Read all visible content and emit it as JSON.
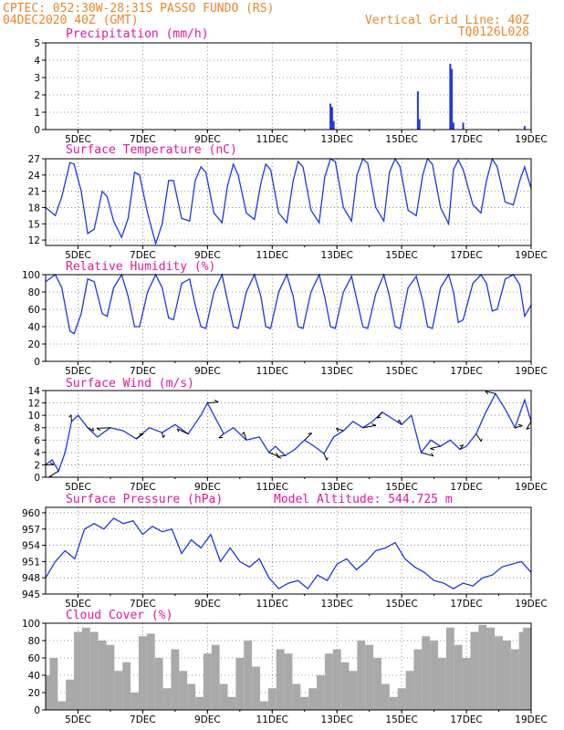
{
  "header": {
    "left_line1": "CPTEC:  052:30W-28:31S  PASSO FUNDO (RS)",
    "left_line2": "04DEC2020 40Z (GMT)",
    "right_line1": "Vertical Grid Line: 40Z",
    "right_line2": "TQ0126L028"
  },
  "colors": {
    "header": "#e8862e",
    "panel_title": "#e0199a",
    "line": "#1f37e0",
    "cloud": "#a9a9a9",
    "arrow": "#000000"
  },
  "x_axis": {
    "start_day": 4,
    "end_day": 19,
    "tick_days": [
      5,
      7,
      9,
      11,
      13,
      15,
      17,
      19
    ],
    "tick_labels": [
      "5DEC",
      "7DEC",
      "9DEC",
      "11DEC",
      "13DEC",
      "15DEC",
      "17DEC",
      "19DEC"
    ]
  },
  "chart_data": [
    {
      "id": "precip",
      "type": "bar",
      "title": "Precipitation (mm/h)",
      "ylim": [
        0,
        5
      ],
      "yticks": [
        0,
        1,
        2,
        3,
        4,
        5
      ],
      "x": [
        12.8,
        12.85,
        12.9,
        15.5,
        15.55,
        16.5,
        16.55,
        16.6,
        16.9,
        18.8
      ],
      "values": [
        1.5,
        1.3,
        0.5,
        2.2,
        0.6,
        3.8,
        3.5,
        0.4,
        0.4,
        0.2
      ]
    },
    {
      "id": "temp",
      "type": "line",
      "title": "Surface Temperature (nC)",
      "ylim": [
        11,
        27
      ],
      "yticks": [
        12,
        15,
        18,
        21,
        24,
        27
      ],
      "x": [
        4.0,
        4.3,
        4.5,
        4.75,
        4.88,
        5.1,
        5.3,
        5.5,
        5.75,
        5.9,
        6.1,
        6.35,
        6.55,
        6.75,
        6.9,
        7.15,
        7.4,
        7.6,
        7.8,
        7.95,
        8.2,
        8.45,
        8.62,
        8.8,
        8.95,
        9.2,
        9.45,
        9.62,
        9.8,
        9.95,
        10.2,
        10.45,
        10.65,
        10.8,
        10.95,
        11.2,
        11.45,
        11.65,
        11.8,
        11.95,
        12.2,
        12.45,
        12.62,
        12.8,
        12.95,
        13.2,
        13.45,
        13.62,
        13.8,
        13.95,
        14.2,
        14.45,
        14.62,
        14.8,
        14.95,
        15.2,
        15.45,
        15.65,
        15.8,
        15.95,
        16.2,
        16.45,
        16.6,
        16.75,
        16.9,
        17.2,
        17.45,
        17.62,
        17.8,
        17.95,
        18.2,
        18.45,
        18.65,
        18.8,
        19.0
      ],
      "values": [
        18,
        16.5,
        20,
        26.3,
        26,
        21,
        13.2,
        14,
        21,
        20,
        15.5,
        12.5,
        16,
        24.5,
        24,
        17,
        11.3,
        15,
        23,
        23,
        16,
        15.5,
        23,
        25.5,
        24.5,
        17,
        15.2,
        22,
        26,
        24,
        17,
        15.8,
        22.5,
        26,
        25,
        17,
        15.2,
        23,
        26.5,
        25.5,
        17.5,
        15.2,
        23.5,
        27,
        26.5,
        18,
        15.5,
        24,
        27,
        26.2,
        18,
        15.5,
        24.5,
        27,
        25.5,
        17.5,
        16.5,
        24,
        27,
        26,
        18,
        15,
        25,
        26.8,
        25,
        18.5,
        17,
        23,
        27,
        25.5,
        19,
        18.5,
        23,
        25.5,
        21.5
      ]
    },
    {
      "id": "rh",
      "type": "line",
      "title": "Relative Humidity (%)",
      "ylim": [
        0,
        100
      ],
      "yticks": [
        0,
        20,
        40,
        60,
        80,
        100
      ],
      "x": [
        4.0,
        4.3,
        4.5,
        4.75,
        4.88,
        5.1,
        5.3,
        5.5,
        5.75,
        5.9,
        6.1,
        6.35,
        6.55,
        6.75,
        6.9,
        7.15,
        7.4,
        7.6,
        7.8,
        7.95,
        8.2,
        8.45,
        8.62,
        8.8,
        8.95,
        9.2,
        9.45,
        9.62,
        9.8,
        9.95,
        10.2,
        10.45,
        10.65,
        10.8,
        10.95,
        11.2,
        11.45,
        11.65,
        11.8,
        11.95,
        12.2,
        12.45,
        12.62,
        12.8,
        12.95,
        13.2,
        13.45,
        13.62,
        13.8,
        13.95,
        14.2,
        14.45,
        14.62,
        14.8,
        14.95,
        15.2,
        15.45,
        15.65,
        15.8,
        15.95,
        16.2,
        16.45,
        16.6,
        16.75,
        16.9,
        17.2,
        17.45,
        17.62,
        17.8,
        17.95,
        18.2,
        18.45,
        18.65,
        18.8,
        19.0
      ],
      "values": [
        92,
        100,
        85,
        35,
        32,
        55,
        95,
        92,
        55,
        52,
        85,
        100,
        75,
        40,
        40,
        80,
        100,
        85,
        50,
        48,
        90,
        95,
        65,
        40,
        38,
        80,
        100,
        70,
        40,
        38,
        80,
        100,
        75,
        40,
        38,
        80,
        100,
        75,
        40,
        38,
        80,
        100,
        75,
        40,
        38,
        80,
        98,
        70,
        40,
        38,
        78,
        100,
        75,
        40,
        38,
        85,
        98,
        70,
        40,
        38,
        85,
        100,
        80,
        45,
        48,
        90,
        100,
        90,
        58,
        60,
        95,
        100,
        88,
        52,
        65
      ]
    },
    {
      "id": "wind",
      "type": "line",
      "title": "Surface Wind (m/s)",
      "ylim": [
        0,
        14
      ],
      "yticks": [
        0,
        2,
        4,
        6,
        8,
        10,
        12,
        14
      ],
      "x": [
        4.0,
        4.2,
        4.4,
        4.6,
        4.8,
        5.0,
        5.3,
        5.6,
        6.0,
        6.4,
        6.8,
        7.2,
        7.6,
        8.0,
        8.4,
        8.8,
        9.0,
        9.2,
        9.5,
        9.8,
        10.2,
        10.6,
        10.9,
        11.1,
        11.4,
        11.7,
        12.0,
        12.3,
        12.6,
        12.9,
        13.2,
        13.5,
        13.8,
        14.1,
        14.4,
        14.7,
        15.0,
        15.3,
        15.6,
        15.9,
        16.2,
        16.5,
        16.8,
        17.0,
        17.3,
        17.6,
        17.9,
        18.2,
        18.5,
        18.8,
        19.0
      ],
      "values": [
        2,
        2.8,
        1,
        4,
        9,
        10,
        8,
        6.5,
        8,
        7.5,
        6.2,
        8,
        7.2,
        8.5,
        7,
        10,
        12,
        10,
        7,
        8,
        6,
        6.5,
        4,
        5,
        3.5,
        4.5,
        6,
        5,
        3.8,
        6.5,
        7.5,
        9,
        8,
        9,
        10.5,
        9.5,
        8.5,
        10,
        4,
        6,
        5,
        6,
        4.5,
        5,
        7,
        10.5,
        13.5,
        11,
        8,
        12.5,
        9
      ]
    },
    {
      "id": "pressure",
      "type": "line",
      "title": "Surface Pressure (hPa)",
      "annotation": "Model Altitude: 544.725 m",
      "ylim": [
        945,
        961
      ],
      "yticks": [
        945,
        948,
        951,
        954,
        957,
        960
      ],
      "x": [
        4.0,
        4.3,
        4.6,
        4.9,
        5.2,
        5.5,
        5.8,
        6.1,
        6.4,
        6.7,
        7.0,
        7.3,
        7.6,
        7.9,
        8.2,
        8.5,
        8.8,
        9.1,
        9.4,
        9.7,
        10.0,
        10.3,
        10.6,
        10.9,
        11.2,
        11.5,
        11.8,
        12.1,
        12.4,
        12.7,
        13.0,
        13.3,
        13.6,
        13.9,
        14.2,
        14.5,
        14.8,
        15.1,
        15.4,
        15.7,
        16.0,
        16.3,
        16.6,
        16.9,
        17.2,
        17.5,
        17.8,
        18.1,
        18.4,
        18.7,
        19.0
      ],
      "values": [
        948,
        951,
        953,
        951.5,
        957,
        958,
        957,
        959,
        958,
        958.5,
        956,
        957.5,
        956.5,
        957,
        952.5,
        955,
        953.5,
        956,
        951,
        953.5,
        951,
        950,
        951.5,
        948,
        946,
        947,
        947.5,
        946,
        948.5,
        947.5,
        950.5,
        951.5,
        949.5,
        951,
        953,
        953.5,
        954.5,
        951.5,
        950,
        949,
        947.5,
        947,
        946,
        947,
        946.5,
        948,
        948.5,
        950,
        950.5,
        951,
        949
      ]
    },
    {
      "id": "cloud",
      "type": "bar",
      "title": "Cloud Cover (%)",
      "ylim": [
        0,
        100
      ],
      "yticks": [
        0,
        20,
        40,
        60,
        80,
        100
      ],
      "x": [
        4.0,
        4.25,
        4.5,
        4.75,
        5.0,
        5.25,
        5.5,
        5.75,
        6.0,
        6.25,
        6.5,
        6.75,
        7.0,
        7.25,
        7.5,
        7.75,
        8.0,
        8.25,
        8.5,
        8.75,
        9.0,
        9.25,
        9.5,
        9.75,
        10.0,
        10.25,
        10.5,
        10.75,
        11.0,
        11.25,
        11.5,
        11.75,
        12.0,
        12.25,
        12.5,
        12.75,
        13.0,
        13.25,
        13.5,
        13.75,
        14.0,
        14.25,
        14.5,
        14.75,
        15.0,
        15.25,
        15.5,
        15.75,
        16.0,
        16.25,
        16.5,
        16.75,
        17.0,
        17.25,
        17.5,
        17.75,
        18.0,
        18.25,
        18.5,
        18.75,
        19.0
      ],
      "values": [
        40,
        60,
        10,
        35,
        90,
        95,
        90,
        80,
        75,
        45,
        55,
        20,
        85,
        88,
        60,
        25,
        70,
        45,
        30,
        15,
        65,
        75,
        30,
        15,
        60,
        80,
        50,
        10,
        25,
        70,
        65,
        30,
        15,
        25,
        40,
        65,
        70,
        55,
        45,
        80,
        75,
        60,
        30,
        15,
        25,
        45,
        70,
        85,
        80,
        60,
        95,
        75,
        60,
        90,
        98,
        95,
        85,
        80,
        70,
        90,
        95
      ]
    }
  ]
}
